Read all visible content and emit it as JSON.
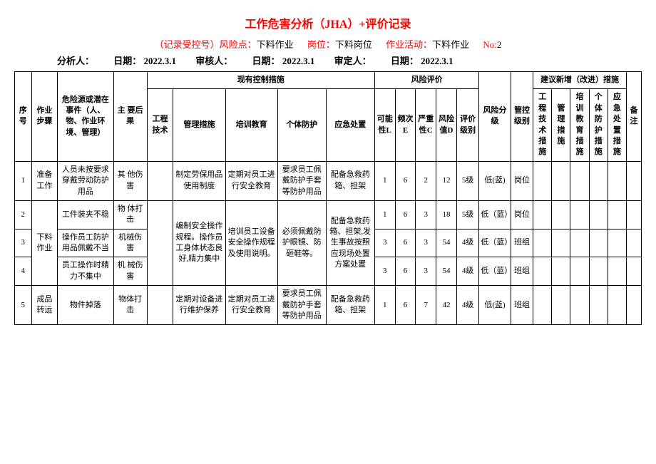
{
  "title": "工作危害分析（JHA）+评价记录",
  "subtitle": {
    "record_label": "（记录受控号）风险点：",
    "risk_point": "下料作业",
    "post_label": "岗位：",
    "post": "下料岗位",
    "activity_label": "作业活动：",
    "activity": "下料作业",
    "no_label": "No:",
    "no": "2"
  },
  "info": {
    "analyst_label": "分析人：",
    "date_label": "日期：",
    "date1": "2022.3.1",
    "reviewer_label": "审核人：",
    "date2_label": "日期：",
    "date2": "2022.3.1",
    "approver_label": "审定人：",
    "date3_label": "日期：",
    "date3": "2022.3.1"
  },
  "headers": {
    "seq": "序号",
    "step": "作业步骤",
    "hazard": "危险源或潜在事件（人、物、作业环境、管理）",
    "consequence": "主 要后果",
    "existing_controls": "现有控制措施",
    "engineering": "工程技术",
    "management": "管理措施",
    "training": "培训教育",
    "ppe": "个体防护",
    "emergency": "应急处置",
    "risk_eval": "风险评价",
    "L": "可能性L",
    "E": "频次E",
    "C": "严重性C",
    "D": "风险值D",
    "eval_level": "评价级别",
    "risk_level": "风险分级",
    "control_level": "管控级别",
    "suggestions": "建议新增（改进）措施",
    "sug_eng": "工程技术措施",
    "sug_mgmt": "管理措施",
    "sug_train": "培训教育措施",
    "sug_ppe": "个体防护措施",
    "sug_emerg": "应急处置措施",
    "note": "备注"
  },
  "rows": [
    {
      "seq": "1",
      "step": "准备工作",
      "hazard": "人员未按要求穿戴劳动防护用品",
      "consequence": "其 他伤害",
      "engineering": "",
      "management": "制定劳保用品使用制度",
      "training": "定期对员工进行安全教育",
      "ppe": "要求员工佩戴防护手套等防护用品",
      "emergency": "配备急救药箱、担架",
      "L": "1",
      "E": "6",
      "C": "2",
      "D": "12",
      "eval_level": "5级",
      "risk_level": "低(蓝)",
      "control_level": "岗位"
    },
    {
      "seq": "2",
      "step": "",
      "hazard": "工件装夹不稳",
      "consequence": "物 体打击",
      "engineering": "",
      "management": "",
      "training": "",
      "ppe": "",
      "emergency": "",
      "L": "1",
      "E": "6",
      "C": "3",
      "D": "18",
      "eval_level": "5级",
      "risk_level": "低（蓝）",
      "control_level": "岗位"
    },
    {
      "seq": "3",
      "step": "下料作业",
      "hazard": "操作员工防护用品佩戴不当",
      "consequence": "机械伤害",
      "engineering": "",
      "management": "编制安全操作规程。操作员工身体状态良好,精力集中",
      "training": "培训员工设备安全操作规程及使用说明。",
      "ppe": "必须佩戴防护眼镜、防砸鞋等。",
      "emergency": "配备急救药箱、担架,发生事故按照应现场处置方案处置",
      "L": "3",
      "E": "6",
      "C": "3",
      "D": "54",
      "eval_level": "4级",
      "risk_level": "低（蓝）",
      "control_level": "班组"
    },
    {
      "seq": "4",
      "step": "",
      "hazard": "员工操作时精力不集中",
      "consequence": "机 械伤害",
      "engineering": "",
      "management": "",
      "training": "",
      "ppe": "",
      "emergency": "",
      "L": "3",
      "E": "6",
      "C": "3",
      "D": "54",
      "eval_level": "4级",
      "risk_level": "低（蓝）",
      "control_level": "班组"
    },
    {
      "seq": "5",
      "step": "成品转运",
      "hazard": "物件掉落",
      "consequence": "物体打击",
      "engineering": "",
      "management": "定期对设备进行维护保养",
      "training": "定期对员工进行安全教育",
      "ppe": "要求员工佩戴防护手套等防护用品",
      "emergency": "配备急救药箱、担架",
      "L": "1",
      "E": "6",
      "C": "7",
      "D": "42",
      "eval_level": "4级",
      "risk_level": "低(蓝)",
      "control_level": "班组"
    }
  ]
}
